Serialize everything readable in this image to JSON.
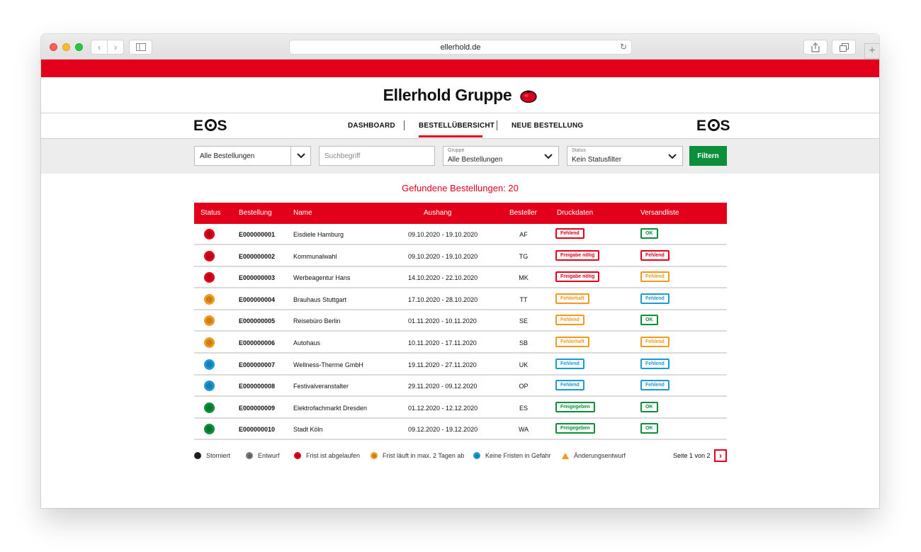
{
  "browser": {
    "url": "ellerhold.de"
  },
  "brand": {
    "title": "Ellerhold Gruppe",
    "logo_left": "EOS",
    "logo_right": "EOS"
  },
  "nav": {
    "items": [
      {
        "label": "DASHBOARD"
      },
      {
        "label": "BESTELLÜBERSICHT"
      },
      {
        "label": "NEUE BESTELLUNG"
      }
    ],
    "active": "BESTELLÜBERSICHT"
  },
  "filters": {
    "orders_select": "Alle Bestellungen",
    "search_placeholder": "Suchbegriff",
    "group_label": "Gruppe",
    "group_value": "Alle Bestellungen",
    "status_label": "Status",
    "status_value": "Kein Statusfilter",
    "filter_button": "Filtern"
  },
  "results": {
    "found_text": "Gefundene Bestellungen: 20"
  },
  "table": {
    "columns": [
      "Status",
      "Bestellung",
      "Name",
      "Aushang",
      "Besteller",
      "Druckdaten",
      "Versandliste"
    ],
    "rows": [
      {
        "status": "red",
        "number": "E000000001",
        "name": "Eisdiele Hamburg",
        "aushang": "09.10.2020 - 19.10.2020",
        "besteller": "AF",
        "druck": "Fehlend",
        "druck_color": "red",
        "vers": "OK",
        "vers_color": "green"
      },
      {
        "status": "red",
        "number": "E000000002",
        "name": "Kommunalwahl",
        "aushang": "09.10.2020 - 19.10.2020",
        "besteller": "TG",
        "druck": "Freigabe nötig",
        "druck_color": "red",
        "vers": "Fehlend",
        "vers_color": "red"
      },
      {
        "status": "red",
        "number": "E000000003",
        "name": "Werbeagentur Hans",
        "aushang": "14.10.2020 - 22.10.2020",
        "besteller": "MK",
        "druck": "Freigabe nötig",
        "druck_color": "red",
        "vers": "Fehlend",
        "vers_color": "orange"
      },
      {
        "status": "orange",
        "number": "E000000004",
        "name": "Brauhaus Stuttgart",
        "aushang": "17.10.2020 - 28.10.2020",
        "besteller": "TT",
        "druck": "Fehlerhaft",
        "druck_color": "orange",
        "vers": "Fehlend",
        "vers_color": "blue"
      },
      {
        "status": "orange",
        "number": "E000000005",
        "name": "Reisebüro Berlin",
        "aushang": "01.11.2020 - 10.11.2020",
        "besteller": "SE",
        "druck": "Fehlend",
        "druck_color": "orange",
        "vers": "OK",
        "vers_color": "green"
      },
      {
        "status": "orange",
        "number": "E000000006",
        "name": "Autohaus",
        "aushang": "10.11.2020 - 17.11.2020",
        "besteller": "SB",
        "druck": "Fehlerhaft",
        "druck_color": "orange",
        "vers": "Fehlend",
        "vers_color": "orange"
      },
      {
        "status": "blue",
        "number": "E000000007",
        "name": "Wellness-Therme GmbH",
        "aushang": "19.11.2020 - 27.11.2020",
        "besteller": "UK",
        "druck": "Fehlend",
        "druck_color": "blue",
        "vers": "Fehlend",
        "vers_color": "blue"
      },
      {
        "status": "blue",
        "number": "E000000008",
        "name": "Festivalveranstalter",
        "aushang": "29.11.2020 - 09.12.2020",
        "besteller": "OP",
        "druck": "Fehlend",
        "druck_color": "blue",
        "vers": "Fehlend",
        "vers_color": "blue"
      },
      {
        "status": "green",
        "number": "E000000009",
        "name": "Elektrofachmarkt Dresden",
        "aushang": "01.12.2020 - 12.12.2020",
        "besteller": "ES",
        "druck": "Freigegeben",
        "druck_color": "green",
        "vers": "OK",
        "vers_color": "green"
      },
      {
        "status": "green",
        "number": "E000000010",
        "name": "Stadt Köln",
        "aushang": "09.12.2020 - 19.12.2020",
        "besteller": "WA",
        "druck": "Freigegeben",
        "druck_color": "green",
        "vers": "OK",
        "vers_color": "green"
      }
    ]
  },
  "legend": [
    {
      "label": "Storniert",
      "color": "#222222",
      "shape": "dot"
    },
    {
      "label": "Entwurf",
      "color": "#777777",
      "shape": "dot"
    },
    {
      "label": "Frist ist abgelaufen",
      "color": "#e3001b",
      "shape": "dot"
    },
    {
      "label": "Frist läuft in max. 2 Tagen ab",
      "color": "#f39a1e",
      "shape": "dot"
    },
    {
      "label": "Keine Fristen in Gefahr",
      "color": "#1d9ad6",
      "shape": "dot"
    },
    {
      "label": "Änderungsentwurf",
      "color": "#f39a1e",
      "shape": "triangle"
    }
  ],
  "pagination": {
    "text": "Seite 1 von 2"
  },
  "colors": {
    "red": "#e3001b",
    "orange": "#f39a1e",
    "blue": "#1d9ad6",
    "green": "#0b8f3a",
    "accent": "#e3001b",
    "filter_button": "#0b8f3a"
  }
}
